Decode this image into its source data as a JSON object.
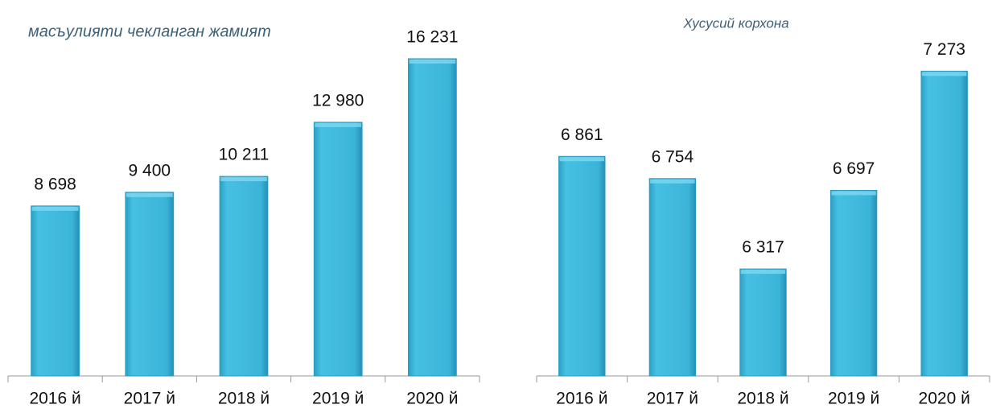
{
  "chart_data": [
    {
      "type": "bar",
      "title": "масъулияти чекланган жамият",
      "categories": [
        "2016 й",
        "2017 й",
        "2018 й",
        "2019 й",
        "2020 й"
      ],
      "values": [
        8698,
        9400,
        10211,
        12980,
        16231
      ],
      "value_labels": [
        "8 698",
        "9 400",
        "10 211",
        "12 980",
        "16 231"
      ],
      "color": "#3bb4d9",
      "ylim": [
        0,
        18000
      ]
    },
    {
      "type": "bar",
      "title": "Хусусий корхона",
      "categories": [
        "2016 й",
        "2017 й",
        "2018 й",
        "2019 й",
        "2020 й"
      ],
      "values": [
        6861,
        6754,
        6317,
        6697,
        7273
      ],
      "value_labels": [
        "6 861",
        "6 754",
        "6 317",
        "6 697",
        "7 273"
      ],
      "color": "#3bb4d9",
      "ylim": [
        5800,
        7500
      ]
    }
  ]
}
